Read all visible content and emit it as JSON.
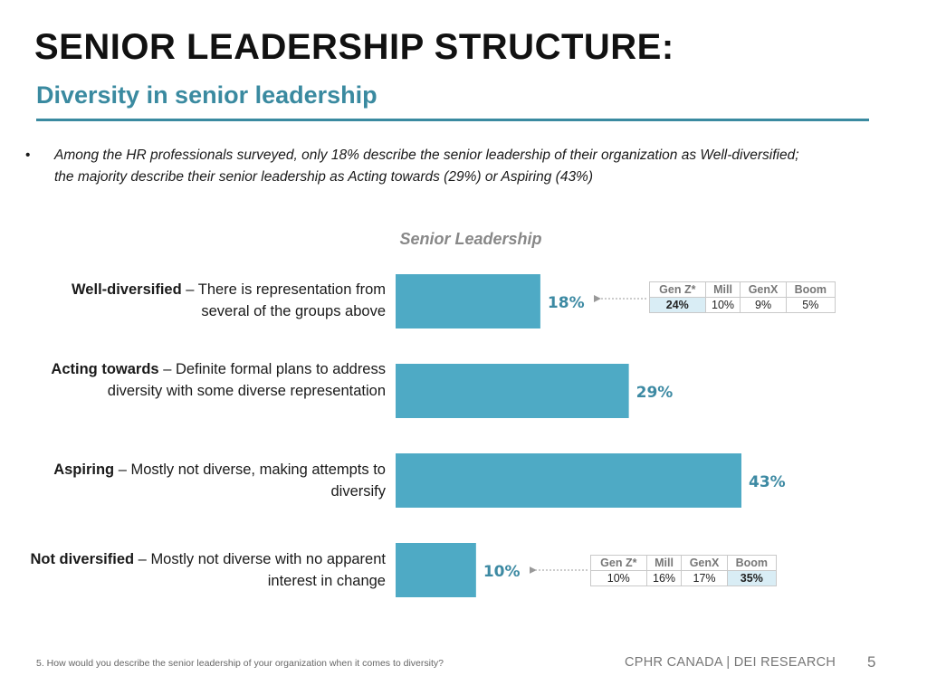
{
  "header": {
    "title": "SENIOR LEADERSHIP STRUCTURE:",
    "subtitle": "Diversity in senior leadership"
  },
  "bullet": {
    "marker": "•",
    "text": "Among the HR professionals surveyed, only 18% describe the senior leadership of their organization as Well-diversified; the majority describe their senior leadership as Acting towards (29%) or Aspiring (43%)"
  },
  "chart_data": {
    "type": "bar",
    "orientation": "horizontal",
    "title": "Senior Leadership",
    "xlabel": "",
    "ylabel": "",
    "xlim": [
      0,
      50
    ],
    "color": "#4eaac5",
    "categories": [
      {
        "name": "Well-diversified",
        "desc": " – There is representation from several of the groups above"
      },
      {
        "name": "Acting towards",
        "desc": " – Definite formal plans to address diversity with some diverse representation"
      },
      {
        "name": "Aspiring",
        "desc": " – Mostly not diverse, making attempts to diversify"
      },
      {
        "name": "Not diversified",
        "desc": " – Mostly not diverse with no apparent interest in change"
      }
    ],
    "values": [
      18,
      29,
      43,
      10
    ],
    "value_labels": [
      "18%",
      "29%",
      "43%",
      "10%"
    ],
    "generation_breakdowns": [
      {
        "category": "Well-diversified",
        "headers": [
          "Gen Z*",
          "Mill",
          "GenX",
          "Boom"
        ],
        "values": [
          "24%",
          "10%",
          "9%",
          "5%"
        ],
        "highlight_index": 0
      },
      {
        "category": "Not diversified",
        "headers": [
          "Gen Z*",
          "Mill",
          "GenX",
          "Boom"
        ],
        "values": [
          "10%",
          "16%",
          "17%",
          "35%"
        ],
        "highlight_index": 3
      }
    ]
  },
  "colors": {
    "accent": "#3a8aa0",
    "bar": "#4eaac5",
    "highlight_text": "#c0392b",
    "highlight_bg": "#d9edf5"
  },
  "footer": {
    "footnote": "5. How would you describe the senior leadership of your organization when it comes to diversity?",
    "brand": "CPHR CANADA | DEI RESEARCH",
    "page_number": "5"
  }
}
